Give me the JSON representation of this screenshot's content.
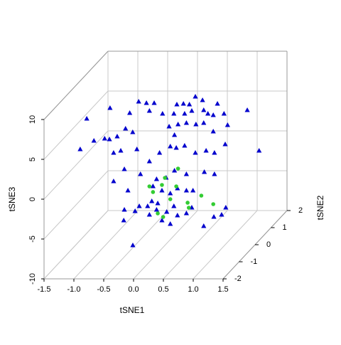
{
  "chart_data": {
    "type": "scatter3d",
    "xlabel": "tSNE1",
    "ylabel": "tSNE2",
    "zlabel": "tSNE3",
    "xlim": [
      -1.5,
      1.5
    ],
    "ylim": [
      -2,
      2
    ],
    "zlim": [
      -10,
      10
    ],
    "xticks": [
      -1.5,
      {
        "value": -1,
        "label": "-1.0"
      },
      -0.5,
      {
        "value": 0,
        "label": "0.0"
      },
      0.5,
      {
        "value": 1,
        "label": "1.0"
      },
      1.5
    ],
    "yticks": [
      -2,
      -1,
      0,
      1,
      2
    ],
    "zticks": [
      -10,
      -5,
      0,
      5,
      10
    ],
    "grid": true,
    "series": [
      {
        "color": "#0000cd",
        "marker": "triangle",
        "x": [
          -0.93,
          -0.45,
          -0.32,
          -0.19,
          0.19,
          0.3,
          0.5,
          0.4,
          0.62,
          0.87,
          1.37,
          -1.32,
          -0.6,
          -0.05,
          -0.27,
          0.14,
          0.32,
          0.44,
          0.64,
          0.71,
          0.8,
          0.98,
          -1.43,
          -1.02,
          -0.94,
          -0.81,
          -0.67,
          -0.55,
          0.06,
          0.21,
          0.35,
          0.51,
          0.64,
          0.8,
          1.04,
          1.3,
          -1.2,
          -0.87,
          -0.75,
          -0.48,
          0.08,
          0.18,
          0.32,
          0.5,
          0.68,
          1.0,
          0.82,
          -0.27,
          -0.69,
          -0.1,
          0.15,
          -0.42,
          -0.87,
          -0.15,
          0.01,
          0.15,
          0.35,
          0.65,
          0.82,
          -0.63,
          -0.21,
          0.08,
          0.2,
          0.35,
          0.46,
          -0.06,
          -0.69,
          -0.51,
          -0.3,
          -0.23,
          -0.13,
          -0.15,
          0.02,
          0.14,
          0.44,
          0.2,
          0.35,
          0.64,
          0.81,
          0.94,
          0.08,
          -0.06,
          -0.7,
          -0.44,
          -0.28,
          1.01,
          -0.27
        ],
        "y": [
          0,
          0,
          0,
          0,
          0,
          0,
          0,
          0,
          0,
          0,
          0,
          0,
          0,
          0,
          0,
          0,
          0,
          0,
          0,
          0,
          0,
          0,
          0,
          0,
          0,
          0,
          0,
          0,
          0,
          0,
          0,
          0,
          0,
          0,
          0,
          1,
          0,
          0,
          0,
          0,
          0,
          0,
          0,
          0,
          0,
          0,
          0,
          0,
          0,
          0,
          0,
          0,
          0,
          0,
          0,
          0,
          0,
          0,
          0,
          0,
          0,
          0,
          0,
          0,
          0,
          0,
          0,
          0,
          0,
          0,
          0,
          0,
          0,
          0,
          0,
          0,
          0,
          0,
          0,
          0,
          0,
          0,
          0,
          0,
          -1,
          0,
          0
        ],
        "z": [
          7.14,
          7.95,
          7.77,
          7.77,
          7.59,
          7.68,
          8.57,
          7.59,
          8.13,
          7.68,
          6.88,
          5.8,
          6.52,
          6.43,
          6.79,
          6.43,
          6.43,
          6.79,
          6.88,
          6.43,
          6.25,
          6.43,
          1.96,
          3.3,
          3.21,
          3.57,
          4.55,
          4.11,
          4.82,
          5.09,
          5.27,
          5.09,
          5.27,
          4.2,
          5.0,
          -0.36,
          3.04,
          1.52,
          1.79,
          1.96,
          2.32,
          2.14,
          2.41,
          1.52,
          1.79,
          2.59,
          1.52,
          0.45,
          -0.54,
          1.52,
          3.75,
          -1.16,
          -2.05,
          -1.79,
          -1.61,
          -0.71,
          -1.16,
          -0.89,
          -1.16,
          -3.21,
          -2.68,
          -3.57,
          -2.95,
          -3.21,
          -3.21,
          -3.21,
          -5.63,
          -5.8,
          -5.18,
          -4.55,
          -4.82,
          -5.63,
          -5.89,
          -5.18,
          -5.36,
          -6.34,
          -6.07,
          -7.68,
          -6.52,
          -6.25,
          -7.41,
          -6.96,
          -6.96,
          -5.18,
          -7.95,
          -5.36,
          -6.25
        ]
      },
      {
        "color": "#33cc33",
        "marker": "circle",
        "x": [
          0.21,
          -0.01,
          -0.27,
          -0.06,
          0.08,
          0.37,
          0.6,
          0.8,
          0.39,
          0.18,
          -0.13,
          -0.04,
          -0.21
        ],
        "y": [
          0,
          0,
          0,
          0,
          0,
          0,
          0,
          0,
          0,
          0,
          0,
          0,
          0
        ],
        "z": [
          -0.45,
          -1.61,
          -2.68,
          -2.5,
          -4.29,
          -4.73,
          -3.84,
          -4.91,
          -5.36,
          -2.68,
          -6.07,
          -6.52,
          -3.39
        ]
      }
    ]
  }
}
